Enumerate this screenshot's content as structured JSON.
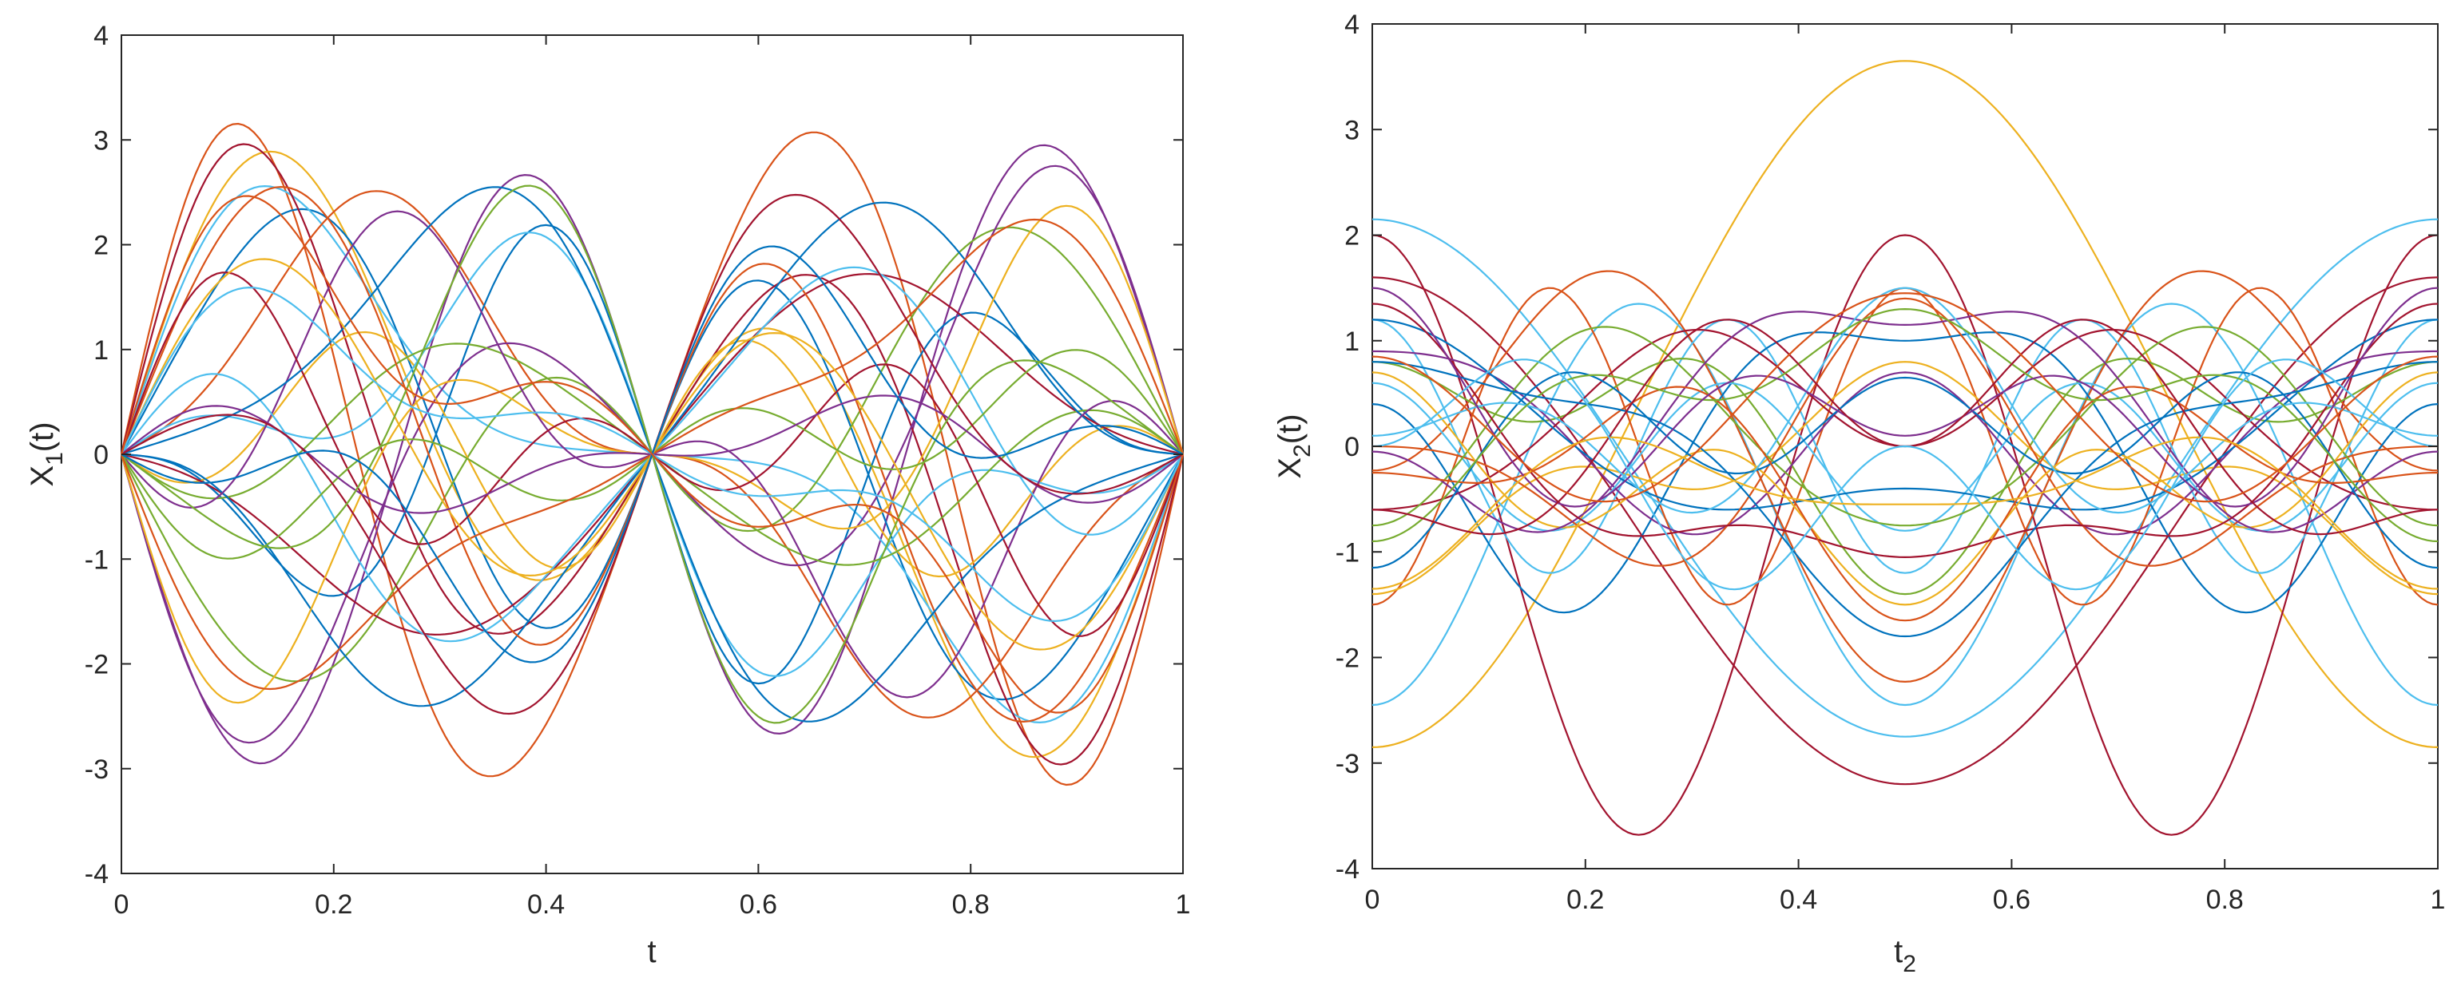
{
  "chart_data": [
    {
      "type": "line",
      "title": "",
      "xlabel": "t",
      "ylabel_main": "X",
      "ylabel_sub": "1",
      "ylabel_tail": "(t)",
      "xlim": [
        0,
        1
      ],
      "ylim": [
        -4,
        4
      ],
      "xticks": [
        0,
        0.2,
        0.4,
        0.6,
        0.8,
        1
      ],
      "xtick_labels": [
        "0",
        "0.2",
        "0.4",
        "0.6",
        "0.8",
        "1"
      ],
      "yticks": [
        -4,
        -3,
        -2,
        -1,
        0,
        1,
        2,
        3,
        4
      ],
      "ytick_labels": [
        "-4",
        "-3",
        "-2",
        "-1",
        "0",
        "1",
        "2",
        "3",
        "4"
      ],
      "grid": false,
      "legend": "none",
      "model": "y = a*sin(2*pi*t) + b*sin(4*pi*t) + c*sin(6*pi*t)",
      "series": [
        {
          "values": [
            -0.5,
            3.0,
            0.6
          ],
          "color": "#D95319"
        },
        {
          "values": [
            1.2,
            2.0,
            0.0
          ],
          "color": "#EDB120"
        },
        {
          "values": [
            -0.3,
            -2.8,
            0.1
          ],
          "color": "#7E2F8E"
        },
        {
          "values": [
            0.9,
            1.8,
            -0.5
          ],
          "color": "#0072BD"
        },
        {
          "values": [
            1.6,
            1.2,
            0.3
          ],
          "color": "#4DBEEE"
        },
        {
          "values": [
            0.4,
            2.3,
            0.5
          ],
          "color": "#A2142F"
        },
        {
          "values": [
            -1.2,
            -1.3,
            0.2
          ],
          "color": "#77AC30"
        },
        {
          "values": [
            2.0,
            0.2,
            -0.5
          ],
          "color": "#D95319"
        },
        {
          "values": [
            0.0,
            -1.4,
            0.9
          ],
          "color": "#0072BD"
        },
        {
          "values": [
            -0.8,
            -1.9,
            -0.4
          ],
          "color": "#7E2F8E"
        },
        {
          "values": [
            0.3,
            0.5,
            -0.8
          ],
          "color": "#EDB120"
        },
        {
          "values": [
            1.1,
            -0.9,
            0.6
          ],
          "color": "#4DBEEE"
        },
        {
          "values": [
            -1.5,
            0.4,
            0.1
          ],
          "color": "#A2142F"
        },
        {
          "values": [
            0.6,
            -0.6,
            -0.2
          ],
          "color": "#77AC30"
        },
        {
          "values": [
            -2.0,
            0.5,
            0.3
          ],
          "color": "#0072BD"
        },
        {
          "values": [
            0.8,
            2.1,
            -0.3
          ],
          "color": "#D95319"
        },
        {
          "values": [
            -0.6,
            -1.4,
            -0.7
          ],
          "color": "#EDB120"
        },
        {
          "values": [
            1.4,
            -0.3,
            -0.9
          ],
          "color": "#7E2F8E"
        },
        {
          "values": [
            -1.0,
            1.0,
            0.4
          ],
          "color": "#4DBEEE"
        },
        {
          "values": [
            0.2,
            0.8,
            0.9
          ],
          "color": "#A2142F"
        },
        {
          "values": [
            -0.4,
            -0.3,
            -0.5
          ],
          "color": "#77AC30"
        },
        {
          "values": [
            1.9,
            -1.0,
            0.2
          ],
          "color": "#0072BD"
        },
        {
          "values": [
            -1.7,
            -0.8,
            -0.3
          ],
          "color": "#D95319"
        },
        {
          "values": [
            0.5,
            1.5,
            0.0
          ],
          "color": "#EDB120"
        },
        {
          "values": [
            -0.2,
            0.3,
            0.3
          ],
          "color": "#7E2F8E"
        },
        {
          "values": [
            1.0,
            0.6,
            0.4
          ],
          "color": "#4DBEEE"
        },
        {
          "values": [
            -1.3,
            1.4,
            -0.2
          ],
          "color": "#A2142F"
        },
        {
          "values": [
            0.7,
            -1.7,
            0.5
          ],
          "color": "#77AC30"
        },
        {
          "values": [
            -0.9,
            0.9,
            -0.6
          ],
          "color": "#0072BD"
        },
        {
          "values": [
            1.5,
            0.9,
            0.7
          ],
          "color": "#D95319"
        }
      ]
    },
    {
      "type": "line",
      "title": "",
      "xlabel_main": "t",
      "xlabel_sub": "2",
      "ylabel_main": "X",
      "ylabel_sub": "2",
      "ylabel_tail": "(t)",
      "xlim": [
        0,
        1
      ],
      "ylim": [
        -4,
        4
      ],
      "xticks": [
        0,
        0.2,
        0.4,
        0.6,
        0.8,
        1
      ],
      "xtick_labels": [
        "0",
        "0.2",
        "0.4",
        "0.6",
        "0.8",
        "1"
      ],
      "yticks": [
        -4,
        -3,
        -2,
        -1,
        0,
        1,
        2,
        3,
        4
      ],
      "ytick_labels": [
        "-4",
        "-3",
        "-2",
        "-1",
        "0",
        "1",
        "2",
        "3",
        "4"
      ],
      "grid": false,
      "legend": "none",
      "model": "y = a0 + a1*cos(2*pi*t) + a2*cos(4*pi*t) + a3*cos(6*pi*t)",
      "series": [
        {
          "values": [
            0.4,
            -3.25,
            0,
            0
          ],
          "color": "#EDB120"
        },
        {
          "values": [
            -0.8,
            2.4,
            0,
            0
          ],
          "color": "#A2142F"
        },
        {
          "values": [
            -0.3,
            2.45,
            0,
            0
          ],
          "color": "#4DBEEE"
        },
        {
          "values": [
            -0.55,
            0.0,
            -1.9,
            0.0
          ],
          "color": "#4DBEEE"
        },
        {
          "values": [
            -0.84,
            0.0,
            2.84,
            0.0
          ],
          "color": "#A2142F"
        },
        {
          "values": [
            0.17,
            1.0,
            -1.4,
            0.0
          ],
          "color": "#D95319"
        },
        {
          "values": [
            0.0,
            0.0,
            0.0,
            -1.5
          ],
          "color": "#D95319"
        },
        {
          "values": [
            0.0,
            0.0,
            0.0,
            1.2
          ],
          "color": "#4DBEEE"
        },
        {
          "values": [
            -0.1,
            -0.9,
            0.8,
            0.6
          ],
          "color": "#0072BD"
        },
        {
          "values": [
            0.2,
            0.6,
            -0.5,
            0.5
          ],
          "color": "#77AC30"
        },
        {
          "values": [
            -0.3,
            -0.7,
            0.0,
            -0.4
          ],
          "color": "#EDB120"
        },
        {
          "values": [
            0.1,
            0.4,
            0.7,
            -0.3
          ],
          "color": "#7E2F8E"
        },
        {
          "values": [
            -0.1,
            0.0,
            0.0,
            0.7
          ],
          "color": "#4DBEEE"
        },
        {
          "values": [
            0.3,
            -0.5,
            -0.6,
            0.2
          ],
          "color": "#A2142F"
        },
        {
          "values": [
            0.0,
            0.8,
            0.4,
            0.0
          ],
          "color": "#0072BD"
        },
        {
          "values": [
            -0.2,
            -0.4,
            0.9,
            -0.3
          ],
          "color": "#D95319"
        },
        {
          "values": [
            0.15,
            0.2,
            -0.9,
            -0.2
          ],
          "color": "#77AC30"
        },
        {
          "values": [
            -0.4,
            0.5,
            0.0,
            0.6
          ],
          "color": "#EDB120"
        },
        {
          "values": [
            0.25,
            -1.0,
            0.3,
            0.4
          ],
          "color": "#7E2F8E"
        },
        {
          "values": [
            0.05,
            -0.3,
            -0.3,
            -0.6
          ],
          "color": "#0072BD"
        },
        {
          "values": [
            -0.35,
            0.9,
            0.5,
            0.3
          ],
          "color": "#A2142F"
        },
        {
          "values": [
            0.2,
            -0.2,
            0.6,
            -0.5
          ],
          "color": "#4DBEEE"
        },
        {
          "values": [
            -0.25,
            0.3,
            -0.7,
            0.4
          ],
          "color": "#D95319"
        },
        {
          "values": [
            0.4,
            -0.7,
            -0.2,
            -0.4
          ],
          "color": "#77AC30"
        },
        {
          "values": [
            -0.1,
            1.1,
            -0.4,
            0.2
          ],
          "color": "#0072BD"
        },
        {
          "values": [
            0.3,
            0.1,
            0.5,
            0.6
          ],
          "color": "#7E2F8E"
        },
        {
          "values": [
            -0.45,
            -0.2,
            -0.5,
            -0.2
          ],
          "color": "#EDB120"
        },
        {
          "values": [
            0.1,
            -0.8,
            -0.4,
            0.5
          ],
          "color": "#A2142F"
        },
        {
          "values": [
            -0.2,
            0.7,
            0.2,
            -0.7
          ],
          "color": "#4DBEEE"
        },
        {
          "values": [
            0.35,
            -0.4,
            0.8,
            0.1
          ],
          "color": "#D95319"
        }
      ]
    }
  ]
}
